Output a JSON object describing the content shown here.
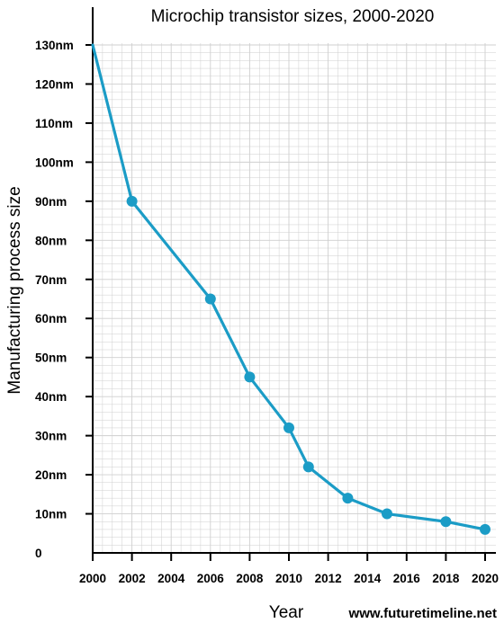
{
  "chart_data": {
    "type": "line",
    "title": "Microchip transistor sizes, 2000-2020",
    "xlabel": "Year",
    "ylabel": "Manufacturing process size",
    "x": [
      2000,
      2002,
      2006,
      2008,
      2010,
      2011,
      2013,
      2015,
      2018,
      2020
    ],
    "y": [
      130,
      90,
      65,
      45,
      32,
      22,
      14,
      10,
      8,
      6
    ],
    "xlim": [
      2000,
      2020
    ],
    "ylim": [
      0,
      130
    ],
    "x_ticks": [
      "2000",
      "2002",
      "2004",
      "2006",
      "2008",
      "2010",
      "2012",
      "2014",
      "2016",
      "2018",
      "2020"
    ],
    "y_ticks": [
      "0",
      "10nm",
      "20nm",
      "30nm",
      "40nm",
      "50nm",
      "60nm",
      "70nm",
      "80nm",
      "90nm",
      "100nm",
      "110nm",
      "120nm",
      "130nm"
    ],
    "grid": true,
    "legend": "none",
    "line_color": "#1b9cc6",
    "grid_color": "#cfcfcf"
  },
  "credit": "www.futuretimeline.net"
}
